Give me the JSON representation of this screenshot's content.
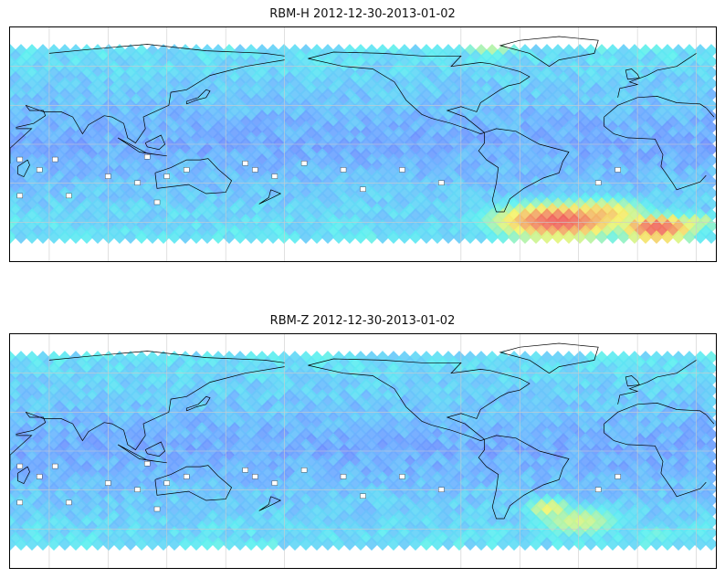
{
  "panels": [
    {
      "id": "rbm-h",
      "title": "RBM-H 2012-12-30-2013-01-02",
      "hotspots": [
        {
          "lon": 10,
          "lat": -65,
          "level": 1.0,
          "rx": 30,
          "ry": 14
        },
        {
          "lon": 30,
          "lat": -60,
          "level": 0.7,
          "rx": 22,
          "ry": 10
        },
        {
          "lon": -40,
          "lat": -60,
          "level": 1.0,
          "rx": 50,
          "ry": 20
        },
        {
          "lon": -20,
          "lat": -55,
          "level": 0.85,
          "rx": 40,
          "ry": 18
        },
        {
          "lon": -75,
          "lat": 75,
          "level": 0.7,
          "rx": 28,
          "ry": 10
        },
        {
          "lon": -140,
          "lat": 78,
          "level": 0.55,
          "rx": 18,
          "ry": 6
        },
        {
          "lon": 80,
          "lat": -68,
          "level": 0.45,
          "rx": 40,
          "ry": 6
        }
      ]
    },
    {
      "id": "rbm-z",
      "title": "RBM-Z 2012-12-30-2013-01-02",
      "hotspots": [
        {
          "lon": -30,
          "lat": -55,
          "level": 0.7,
          "rx": 35,
          "ry": 18
        },
        {
          "lon": -45,
          "lat": -45,
          "level": 0.75,
          "rx": 18,
          "ry": 12
        },
        {
          "lon": 10,
          "lat": -65,
          "level": 0.55,
          "rx": 25,
          "ry": 10
        },
        {
          "lon": 130,
          "lat": -70,
          "level": 0.5,
          "rx": 15,
          "ry": 5
        }
      ]
    }
  ],
  "colors": {
    "low": "#6e6efd",
    "mid_low": "#6eb4ff",
    "mid": "#5ef0f0",
    "mid_high": "#f5f56e",
    "high": "#f06060",
    "coast": "#000000",
    "grid": "#cccccc"
  }
}
